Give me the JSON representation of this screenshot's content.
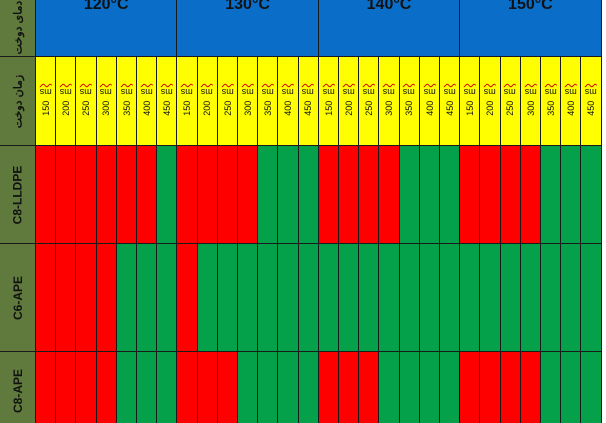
{
  "row_labels": {
    "header_temp": "دمای دوخت",
    "header_time": "زمان دوخت",
    "materials": [
      "C8-LLDPE",
      "C6-APE",
      "C8-APE"
    ]
  },
  "temperatures": [
    "120°C",
    "130°C",
    "140°C",
    "150°C"
  ],
  "times": [
    "150 ms",
    "200 ms",
    "250 ms",
    "300 ms",
    "350 ms",
    "400 ms",
    "450 ms"
  ],
  "colors": {
    "pass": "#05a04a",
    "fail": "#ff0000",
    "time_row": "#ffff00",
    "temp_row": "#0a6ec8",
    "label_col": "#5f7a3c"
  },
  "results": {
    "C8-LLDPE": [
      [
        "fail",
        "fail",
        "fail",
        "fail",
        "fail",
        "fail",
        "pass"
      ],
      [
        "fail",
        "fail",
        "fail",
        "fail",
        "pass",
        "pass",
        "pass"
      ],
      [
        "fail",
        "fail",
        "fail",
        "fail",
        "pass",
        "pass",
        "pass"
      ],
      [
        "fail",
        "fail",
        "fail",
        "fail",
        "pass",
        "pass",
        "pass"
      ]
    ],
    "C6-APE": [
      [
        "fail",
        "fail",
        "fail",
        "fail",
        "pass",
        "pass",
        "pass"
      ],
      [
        "fail",
        "pass",
        "pass",
        "pass",
        "pass",
        "pass",
        "pass"
      ],
      [
        "pass",
        "pass",
        "pass",
        "pass",
        "pass",
        "pass",
        "pass"
      ],
      [
        "pass",
        "pass",
        "pass",
        "pass",
        "pass",
        "pass",
        "pass"
      ]
    ],
    "C8-APE": [
      [
        "fail",
        "fail",
        "fail",
        "fail",
        "pass",
        "pass",
        "pass"
      ],
      [
        "fail",
        "fail",
        "fail",
        "pass",
        "pass",
        "pass",
        "pass"
      ],
      [
        "fail",
        "fail",
        "fail",
        "pass",
        "pass",
        "pass",
        "pass"
      ],
      [
        "fail",
        "fail",
        "fail",
        "fail",
        "pass",
        "pass",
        "pass"
      ]
    ]
  }
}
